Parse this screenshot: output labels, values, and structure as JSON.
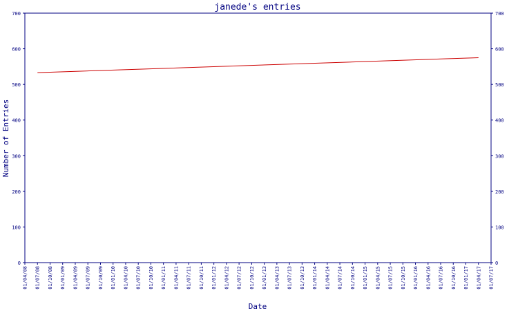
{
  "chart_data": {
    "type": "line",
    "title": "janede's entries",
    "xlabel": "Date",
    "ylabel": "Number of Entries",
    "ylim": [
      0,
      700
    ],
    "yticks": [
      0,
      100,
      200,
      300,
      400,
      500,
      600,
      700
    ],
    "x_tick_labels": [
      "01/04/08",
      "01/07/08",
      "01/10/08",
      "01/01/09",
      "01/04/09",
      "01/07/09",
      "01/10/09",
      "01/01/10",
      "01/04/10",
      "01/07/10",
      "01/10/10",
      "01/01/11",
      "01/04/11",
      "01/07/11",
      "01/10/11",
      "01/01/12",
      "01/04/12",
      "01/07/12",
      "01/10/12",
      "01/01/13",
      "01/04/13",
      "01/07/13",
      "01/10/13",
      "01/01/14",
      "01/04/14",
      "01/07/14",
      "01/10/14",
      "01/01/15",
      "01/04/15",
      "01/07/15",
      "01/10/15",
      "01/01/16",
      "01/04/16",
      "01/07/16",
      "01/10/16",
      "01/01/17",
      "01/04/17",
      "01/07/17"
    ],
    "grid": false,
    "right_axis": true,
    "colors": {
      "axis": "#000080",
      "line": "#cc0000",
      "text": "#000080"
    },
    "series": [
      {
        "x": [
          "01/07/08",
          "01/04/17"
        ],
        "values": [
          533,
          575
        ]
      }
    ]
  }
}
